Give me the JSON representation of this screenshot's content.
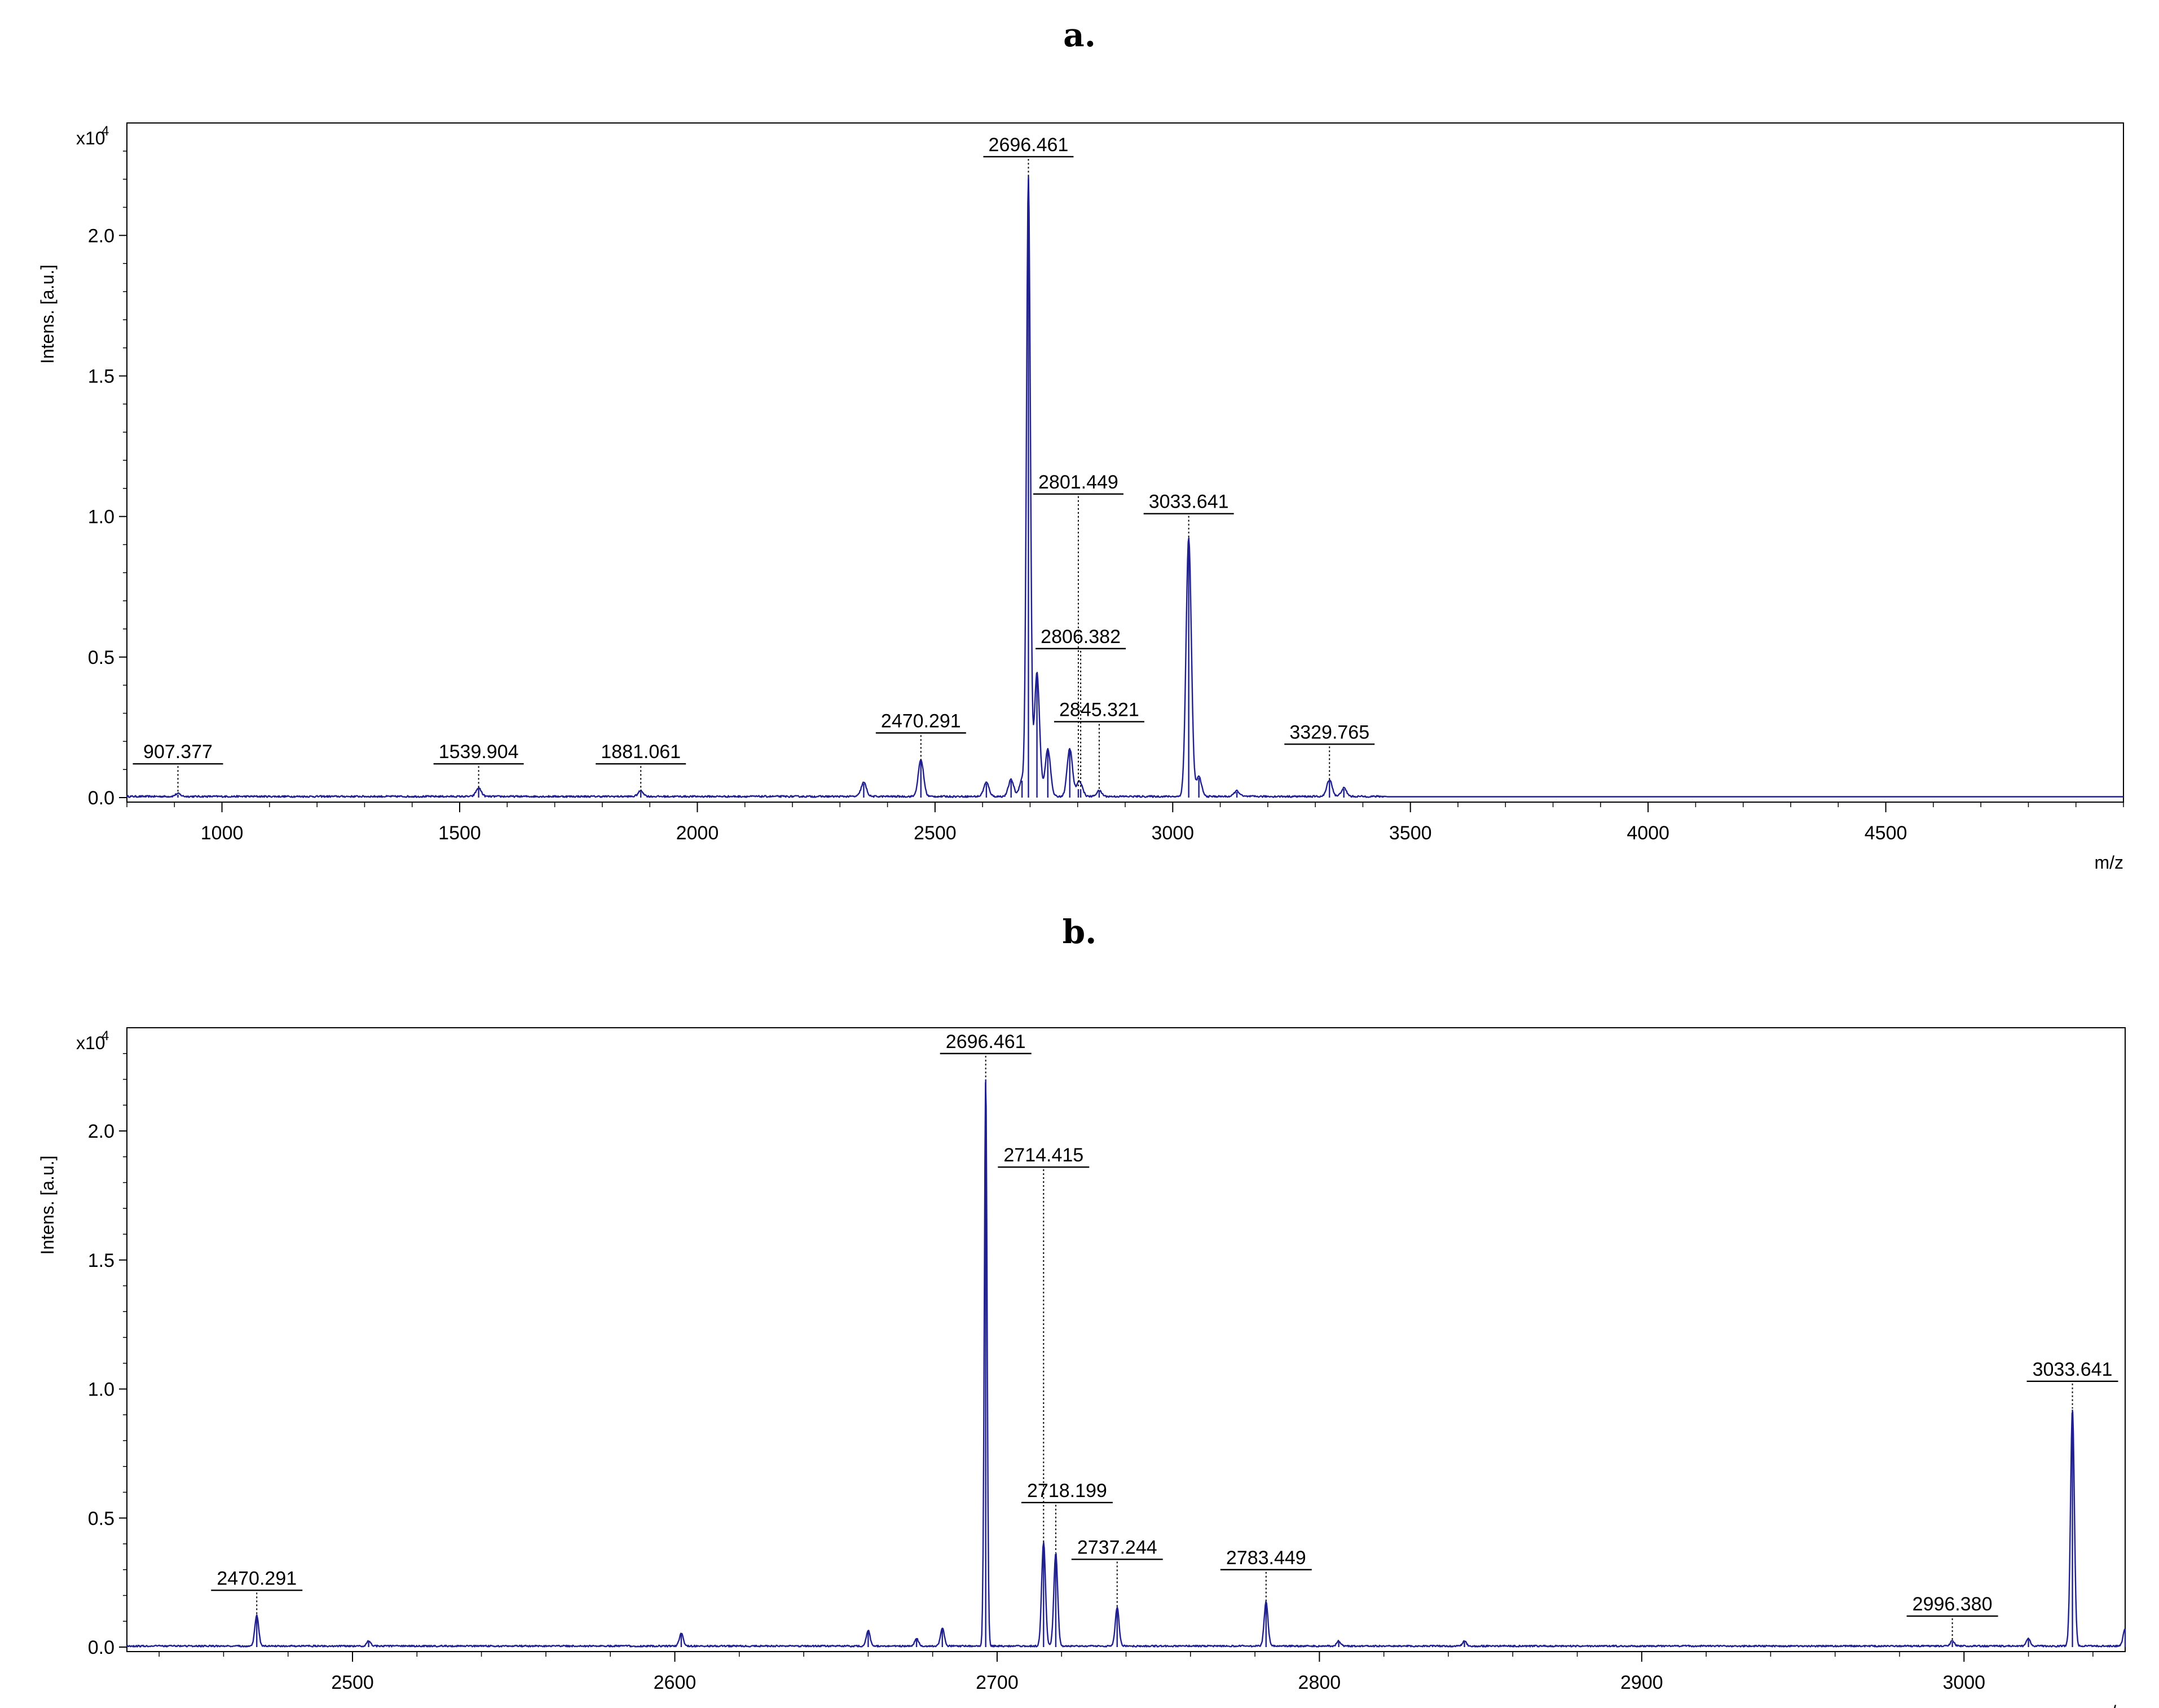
{
  "panels": {
    "a": "a.",
    "b": "b."
  },
  "colors": {
    "spectrum": "#1f1f8f",
    "axis": "#000000"
  },
  "chart_data": [
    {
      "type": "line",
      "panel": "a.",
      "ylabel": "Intens. [a.u.]",
      "yscale_label": "x10",
      "yscale_exp": "4",
      "xlabel": "m/z",
      "xlim": [
        800,
        5000
      ],
      "ylim": [
        0,
        2.4
      ],
      "xticks": [
        1000,
        1500,
        2000,
        2500,
        3000,
        3500,
        4000,
        4500
      ],
      "yticks": [
        "0.0",
        "0.5",
        "1.0",
        "1.5",
        "2.0"
      ],
      "peaks": [
        {
          "x": 907.377,
          "y": 0.01
        },
        {
          "x": 1539.904,
          "y": 0.03
        },
        {
          "x": 1881.061,
          "y": 0.02
        },
        {
          "x": 2350,
          "y": 0.05
        },
        {
          "x": 2470.291,
          "y": 0.13
        },
        {
          "x": 2608,
          "y": 0.05
        },
        {
          "x": 2660,
          "y": 0.06
        },
        {
          "x": 2683,
          "y": 0.06
        },
        {
          "x": 2696.461,
          "y": 2.2
        },
        {
          "x": 2714.415,
          "y": 0.44
        },
        {
          "x": 2737.244,
          "y": 0.17
        },
        {
          "x": 2783.449,
          "y": 0.17
        },
        {
          "x": 2801.449,
          "y": 0.03
        },
        {
          "x": 2806.382,
          "y": 0.03
        },
        {
          "x": 2845.321,
          "y": 0.02
        },
        {
          "x": 3033.641,
          "y": 0.92
        },
        {
          "x": 3055,
          "y": 0.07
        },
        {
          "x": 3135,
          "y": 0.02
        },
        {
          "x": 3329.765,
          "y": 0.06
        },
        {
          "x": 3360,
          "y": 0.03
        }
      ],
      "annotations": [
        {
          "label": "907.377",
          "x": 907.377
        },
        {
          "label": "1539.904",
          "x": 1539.904
        },
        {
          "label": "1881.061",
          "x": 1881.061
        },
        {
          "label": "2470.291",
          "x": 2470.291
        },
        {
          "label": "2696.461",
          "x": 2696.461
        },
        {
          "label": "2801.449",
          "x": 2801.449
        },
        {
          "label": "2806.382",
          "x": 2806.382
        },
        {
          "label": "2845.321",
          "x": 2845.321
        },
        {
          "label": "3033.641",
          "x": 3033.641
        },
        {
          "label": "3329.765",
          "x": 3329.765
        }
      ]
    },
    {
      "type": "line",
      "panel": "b.",
      "ylabel": "Intens. [a.u.]",
      "yscale_label": "x10",
      "yscale_exp": "4",
      "xlabel": "m/z",
      "xlim": [
        2430,
        3050
      ],
      "ylim": [
        0,
        2.4
      ],
      "xticks": [
        2500,
        2600,
        2700,
        2800,
        2900,
        3000
      ],
      "yticks": [
        "0.0",
        "0.5",
        "1.0",
        "1.5",
        "2.0"
      ],
      "peaks": [
        {
          "x": 2470.291,
          "y": 0.12
        },
        {
          "x": 2505,
          "y": 0.02
        },
        {
          "x": 2602,
          "y": 0.05
        },
        {
          "x": 2660,
          "y": 0.06
        },
        {
          "x": 2675,
          "y": 0.03
        },
        {
          "x": 2683,
          "y": 0.07
        },
        {
          "x": 2696.461,
          "y": 2.2
        },
        {
          "x": 2714.415,
          "y": 0.4
        },
        {
          "x": 2718.199,
          "y": 0.36
        },
        {
          "x": 2737.244,
          "y": 0.15
        },
        {
          "x": 2783.449,
          "y": 0.17
        },
        {
          "x": 2806,
          "y": 0.02
        },
        {
          "x": 2845,
          "y": 0.02
        },
        {
          "x": 2996.38,
          "y": 0.02
        },
        {
          "x": 3020,
          "y": 0.03
        },
        {
          "x": 3033.641,
          "y": 0.92
        },
        {
          "x": 3050,
          "y": 0.07
        }
      ],
      "annotations": [
        {
          "label": "2470.291",
          "x": 2470.291
        },
        {
          "label": "2696.461",
          "x": 2696.461
        },
        {
          "label": "2714.415",
          "x": 2714.415
        },
        {
          "label": "2718.199",
          "x": 2718.199
        },
        {
          "label": "2737.244",
          "x": 2737.244
        },
        {
          "label": "2783.449",
          "x": 2783.449
        },
        {
          "label": "2996.380",
          "x": 2996.38
        },
        {
          "label": "3033.641",
          "x": 3033.641
        }
      ]
    }
  ]
}
